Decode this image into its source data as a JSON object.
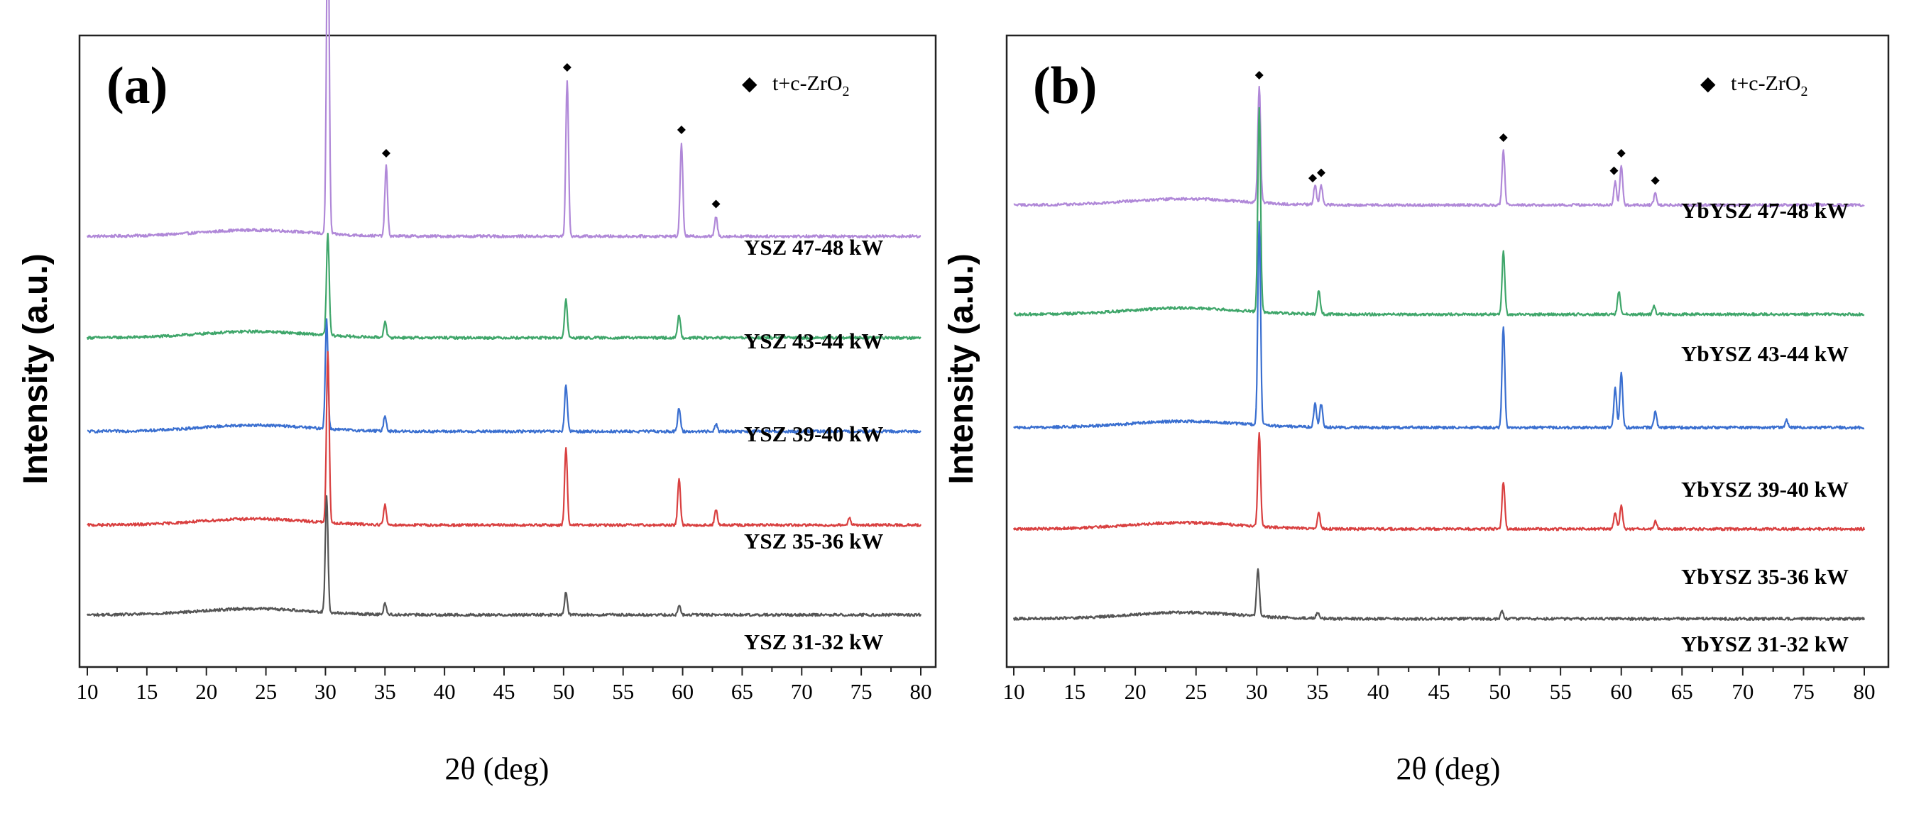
{
  "chart_data": [
    {
      "type": "line",
      "panel_label": "(a)",
      "title": "",
      "xlabel": "2θ (deg)",
      "ylabel": "Intensity (a.u.)",
      "xlim": [
        10,
        80
      ],
      "xticks": [
        "10",
        "15",
        "20",
        "25",
        "30",
        "35",
        "40",
        "45",
        "50",
        "55",
        "60",
        "65",
        "70",
        "75",
        "80"
      ],
      "legend": {
        "marker": "◆",
        "text": "t+c-ZrO",
        "subscript": "2",
        "position": "top-right"
      },
      "series": [
        {
          "name": "YSZ 47-48 kW",
          "color": "#b088d8",
          "baseline": 5.2,
          "peaks": [
            [
              30.2,
              4.4
            ],
            [
              35.1,
              0.9
            ],
            [
              50.3,
              2.0
            ],
            [
              59.9,
              1.2
            ],
            [
              62.8,
              0.25
            ]
          ],
          "markers": [
            30.2,
            35.1,
            50.3,
            59.9,
            62.8
          ]
        },
        {
          "name": "YSZ 43-44 kW",
          "color": "#3fa66a",
          "baseline": 3.9,
          "peaks": [
            [
              30.2,
              1.3
            ],
            [
              35.0,
              0.2
            ],
            [
              50.2,
              0.5
            ],
            [
              59.7,
              0.3
            ]
          ],
          "markers": []
        },
        {
          "name": "YSZ 39-40 kW",
          "color": "#3a6fd0",
          "baseline": 2.7,
          "peaks": [
            [
              30.1,
              1.4
            ],
            [
              35.0,
              0.2
            ],
            [
              50.2,
              0.6
            ],
            [
              59.7,
              0.3
            ],
            [
              62.8,
              0.1
            ]
          ],
          "markers": []
        },
        {
          "name": "YSZ 35-36 kW",
          "color": "#d94040",
          "baseline": 1.5,
          "peaks": [
            [
              30.2,
              2.2
            ],
            [
              35.0,
              0.25
            ],
            [
              50.2,
              1.0
            ],
            [
              59.7,
              0.6
            ],
            [
              62.8,
              0.2
            ],
            [
              74.0,
              0.1
            ]
          ],
          "markers": []
        },
        {
          "name": "YSZ 31-32 kW",
          "color": "#555555",
          "baseline": 0.35,
          "peaks": [
            [
              30.1,
              1.5
            ],
            [
              35.0,
              0.15
            ],
            [
              50.2,
              0.3
            ],
            [
              59.7,
              0.12
            ]
          ],
          "markers": []
        }
      ]
    },
    {
      "type": "line",
      "panel_label": "(b)",
      "title": "",
      "xlabel": "2θ (deg)",
      "ylabel": "Intensity (a.u.)",
      "xlim": [
        10,
        80
      ],
      "xticks": [
        "10",
        "15",
        "20",
        "25",
        "30",
        "35",
        "40",
        "45",
        "50",
        "55",
        "60",
        "65",
        "70",
        "75",
        "80"
      ],
      "legend": {
        "marker": "◆",
        "text": "t+c-ZrO",
        "subscript": "2",
        "position": "top-right"
      },
      "series": [
        {
          "name": "YbYSZ 47-48 kW",
          "color": "#b088d8",
          "baseline": 5.6,
          "peaks": [
            [
              30.2,
              1.5
            ],
            [
              34.8,
              0.25
            ],
            [
              35.3,
              0.25
            ],
            [
              50.3,
              0.7
            ],
            [
              59.5,
              0.3
            ],
            [
              60.0,
              0.5
            ],
            [
              62.8,
              0.15
            ]
          ],
          "markers": [
            30.2,
            34.6,
            35.3,
            50.3,
            59.4,
            60.0,
            62.8
          ]
        },
        {
          "name": "YbYSZ 43-44 kW",
          "color": "#3fa66a",
          "baseline": 4.2,
          "peaks": [
            [
              30.2,
              2.6
            ],
            [
              35.1,
              0.3
            ],
            [
              50.3,
              0.8
            ],
            [
              59.8,
              0.3
            ],
            [
              62.7,
              0.1
            ]
          ],
          "markers": []
        },
        {
          "name": "YbYSZ 39-40 kW",
          "color": "#3a6fd0",
          "baseline": 2.75,
          "peaks": [
            [
              30.2,
              2.6
            ],
            [
              34.8,
              0.3
            ],
            [
              35.3,
              0.3
            ],
            [
              50.3,
              1.3
            ],
            [
              59.5,
              0.5
            ],
            [
              60.0,
              0.7
            ],
            [
              62.8,
              0.2
            ],
            [
              73.6,
              0.1
            ]
          ],
          "markers": []
        },
        {
          "name": "YbYSZ 35-36 kW",
          "color": "#d94040",
          "baseline": 1.45,
          "peaks": [
            [
              30.2,
              1.2
            ],
            [
              35.1,
              0.2
            ],
            [
              50.3,
              0.6
            ],
            [
              59.5,
              0.2
            ],
            [
              60.0,
              0.3
            ],
            [
              62.8,
              0.1
            ]
          ],
          "markers": []
        },
        {
          "name": "YbYSZ 31-32 kW",
          "color": "#555555",
          "baseline": 0.3,
          "peaks": [
            [
              30.1,
              0.6
            ],
            [
              35.0,
              0.08
            ],
            [
              50.2,
              0.1
            ]
          ],
          "markers": []
        }
      ]
    }
  ]
}
